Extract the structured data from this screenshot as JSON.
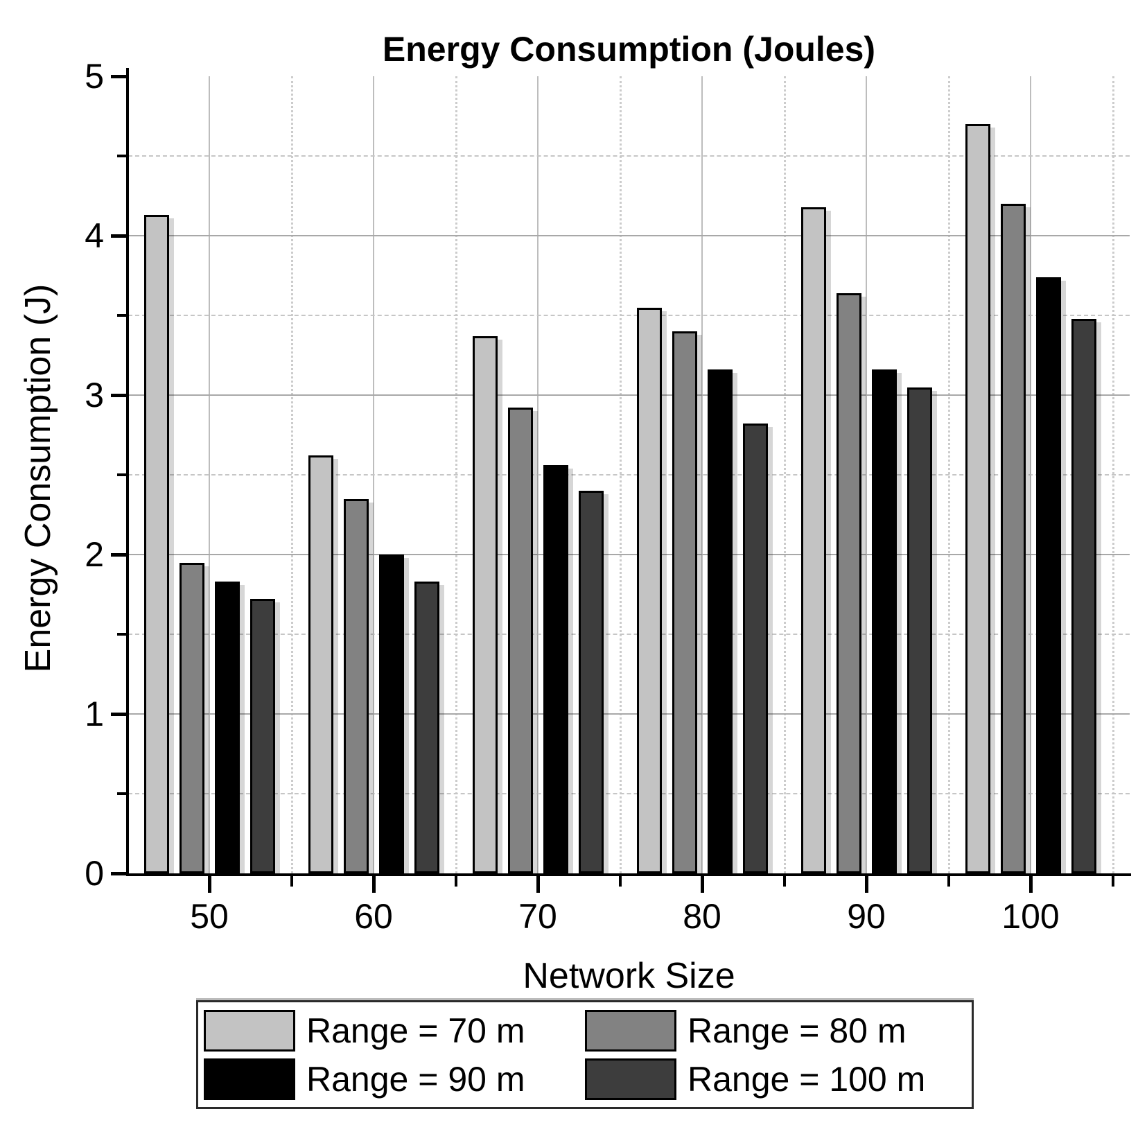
{
  "chart_data": {
    "type": "bar",
    "title": "Energy Consumption (Joules)",
    "xlabel": "Network Size",
    "ylabel": "Energy Consumption (J)",
    "categories": [
      50,
      60,
      70,
      80,
      90,
      100
    ],
    "series": [
      {
        "name": "Range = 70 m",
        "color": "#c3c3c3",
        "values": [
          4.13,
          2.62,
          3.37,
          3.55,
          4.18,
          4.7
        ]
      },
      {
        "name": "Range = 80 m",
        "color": "#828282",
        "values": [
          1.95,
          2.35,
          2.92,
          3.4,
          3.64,
          4.2
        ]
      },
      {
        "name": "Range = 90 m",
        "color": "#000000",
        "values": [
          1.83,
          2.0,
          2.56,
          3.16,
          3.16,
          3.74
        ]
      },
      {
        "name": "Range = 100 m",
        "color": "#3d3d3d",
        "values": [
          1.72,
          1.83,
          2.4,
          2.82,
          3.05,
          3.48
        ]
      }
    ],
    "ylim": [
      0,
      5
    ],
    "y_major_ticks": [
      0,
      1,
      2,
      3,
      4,
      5
    ],
    "y_minor_step": 0.5,
    "x_minor_offsets": [
      55,
      65,
      75,
      85,
      95,
      105
    ],
    "grid": "horizontal solid at integers, dashed at halves; vertical solid at majors, dotted at minors",
    "legend_position": "bottom"
  }
}
